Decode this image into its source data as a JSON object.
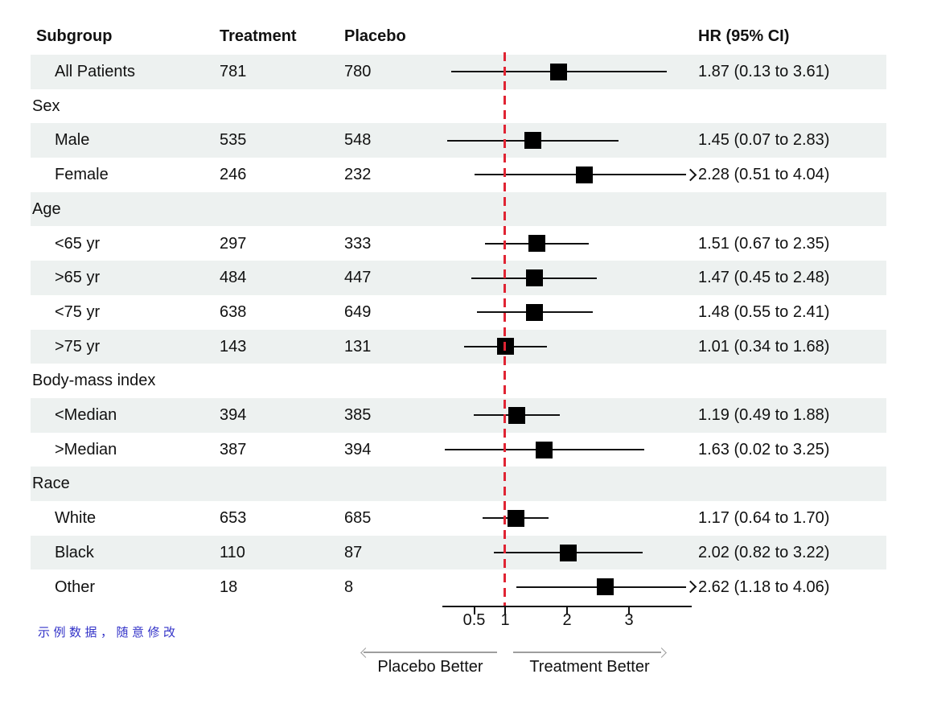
{
  "header": {
    "subgroup": "Subgroup",
    "treatment": "Treatment",
    "placebo": "Placebo",
    "hr": "HR (95% CI)"
  },
  "chart_data": {
    "type": "forest",
    "title": "",
    "columns": [
      "Subgroup",
      "Treatment",
      "Placebo",
      "HR (95% CI)"
    ],
    "axis": {
      "scale": "linear",
      "range": [
        0,
        4
      ],
      "ticks": [
        "0.5",
        "1",
        "2",
        "3"
      ],
      "tick_values": [
        0.5,
        1,
        2,
        3
      ],
      "reference_line": 1,
      "grid": false
    },
    "direction_labels": {
      "left": "Placebo Better",
      "right": "Treatment Better"
    },
    "rows": [
      {
        "label": "All Patients",
        "level": "item",
        "treatment": "781",
        "placebo": "780",
        "hr": 1.87,
        "lo": 0.13,
        "hi": 3.61,
        "hr_text": "1.87 (0.13 to 3.61)",
        "arrow": false
      },
      {
        "label": "Sex",
        "level": "group"
      },
      {
        "label": "Male",
        "level": "item",
        "treatment": "535",
        "placebo": "548",
        "hr": 1.45,
        "lo": 0.07,
        "hi": 2.83,
        "hr_text": "1.45 (0.07 to 2.83)",
        "arrow": false
      },
      {
        "label": "Female",
        "level": "item",
        "treatment": "246",
        "placebo": "232",
        "hr": 2.28,
        "lo": 0.51,
        "hi": 4.04,
        "hr_text": "2.28 (0.51 to 4.04)",
        "arrow": true
      },
      {
        "label": "Age",
        "level": "group"
      },
      {
        "label": "<65 yr",
        "level": "item",
        "treatment": "297",
        "placebo": "333",
        "hr": 1.51,
        "lo": 0.67,
        "hi": 2.35,
        "hr_text": "1.51 (0.67 to 2.35)",
        "arrow": false
      },
      {
        "label": ">65 yr",
        "level": "item",
        "treatment": "484",
        "placebo": "447",
        "hr": 1.47,
        "lo": 0.45,
        "hi": 2.48,
        "hr_text": "1.47 (0.45 to 2.48)",
        "arrow": false
      },
      {
        "label": "<75 yr",
        "level": "item",
        "treatment": "638",
        "placebo": "649",
        "hr": 1.48,
        "lo": 0.55,
        "hi": 2.41,
        "hr_text": "1.48 (0.55 to 2.41)",
        "arrow": false
      },
      {
        "label": ">75 yr",
        "level": "item",
        "treatment": "143",
        "placebo": "131",
        "hr": 1.01,
        "lo": 0.34,
        "hi": 1.68,
        "hr_text": "1.01 (0.34 to 1.68)",
        "arrow": false
      },
      {
        "label": "Body-mass index",
        "level": "group"
      },
      {
        "label": "<Median",
        "level": "item",
        "treatment": "394",
        "placebo": "385",
        "hr": 1.19,
        "lo": 0.49,
        "hi": 1.88,
        "hr_text": "1.19 (0.49 to 1.88)",
        "arrow": false
      },
      {
        "label": ">Median",
        "level": "item",
        "treatment": "387",
        "placebo": "394",
        "hr": 1.63,
        "lo": 0.02,
        "hi": 3.25,
        "hr_text": "1.63 (0.02 to 3.25)",
        "arrow": false
      },
      {
        "label": "Race",
        "level": "group"
      },
      {
        "label": "White",
        "level": "item",
        "treatment": "653",
        "placebo": "685",
        "hr": 1.17,
        "lo": 0.64,
        "hi": 1.7,
        "hr_text": "1.17 (0.64 to 1.70)",
        "arrow": false
      },
      {
        "label": "Black",
        "level": "item",
        "treatment": "110",
        "placebo": "87",
        "hr": 2.02,
        "lo": 0.82,
        "hi": 3.22,
        "hr_text": "2.02 (0.82 to 3.22)",
        "arrow": false
      },
      {
        "label": "Other",
        "level": "item",
        "treatment": "18",
        "placebo": "8",
        "hr": 2.62,
        "lo": 1.18,
        "hi": 4.06,
        "hr_text": "2.62 (1.18 to 4.06)",
        "arrow": true
      }
    ]
  },
  "footnote": {
    "text": "示例数据，随意修改"
  },
  "colors": {
    "stripe": "#edf1f0",
    "reference_line": "#e02433",
    "marker": "#000000",
    "ci_line": "#111111",
    "direction_arrow": "#9e9e9e",
    "footnote": "#3333c8"
  }
}
